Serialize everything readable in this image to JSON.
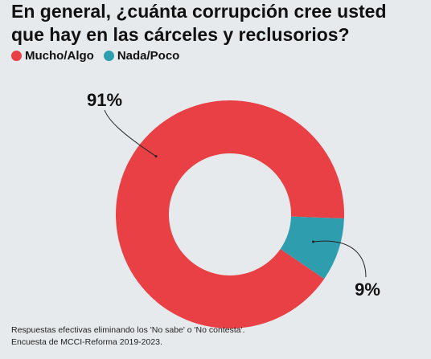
{
  "chart_data": {
    "type": "pie",
    "title": "En general, ¿cuánta corrupción cree usted que hay en las cárceles y reclusorios?",
    "categories": [
      "Mucho/Algo",
      "Nada/Poco"
    ],
    "values": [
      91,
      9
    ],
    "data_labels": [
      "91%",
      "9%"
    ],
    "colors": [
      "#e84045",
      "#2e9eaf"
    ],
    "donut": true,
    "legend_position": "top-left"
  },
  "footnote": {
    "line1": "Respuestas efectivas eliminando los 'No sabe' o 'No contesta'.",
    "line2": "Encuesta de MCCI-Reforma 2019-2023."
  }
}
